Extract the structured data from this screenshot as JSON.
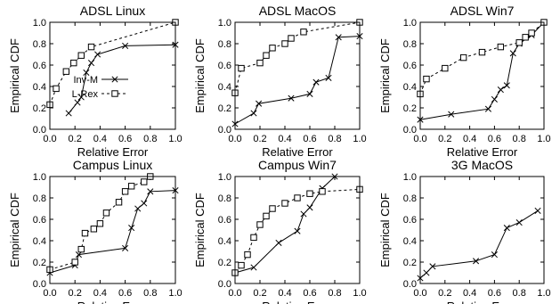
{
  "chart_data": [
    {
      "type": "line",
      "title": "ADSL Linux",
      "xlabel": "Relative Error",
      "ylabel": "Empirical CDF",
      "xlim": [
        0,
        1
      ],
      "ylim": [
        0,
        1
      ],
      "xticks": [
        "0.0",
        "0.2",
        "0.4",
        "0.6",
        "0.8",
        "1.0"
      ],
      "yticks": [
        "0.0",
        "0.2",
        "0.4",
        "0.6",
        "0.8",
        "1.0"
      ],
      "legend": "center-left",
      "series": [
        {
          "name": "Inv-M",
          "marker": "x",
          "dash": "solid",
          "x": [
            0.15,
            0.22,
            0.25,
            0.29,
            0.33,
            0.38,
            0.6,
            1.0
          ],
          "y": [
            0.15,
            0.25,
            0.3,
            0.53,
            0.62,
            0.7,
            0.78,
            0.79
          ]
        },
        {
          "name": "L-Rex",
          "marker": "square",
          "dash": "dashed",
          "x": [
            0.0,
            0.05,
            0.13,
            0.19,
            0.25,
            0.33,
            1.0
          ],
          "y": [
            0.23,
            0.38,
            0.54,
            0.62,
            0.69,
            0.77,
            1.0
          ]
        }
      ]
    },
    {
      "type": "line",
      "title": "ADSL MacOS",
      "xlabel": "Relative Error",
      "ylabel": "Empirical CDF",
      "xlim": [
        0,
        1
      ],
      "ylim": [
        0,
        1
      ],
      "xticks": [
        "0.0",
        "0.2",
        "0.4",
        "0.6",
        "0.8",
        "1.0"
      ],
      "yticks": [
        "0.0",
        "0.2",
        "0.4",
        "0.6",
        "0.8",
        "1.0"
      ],
      "series": [
        {
          "name": "Inv-M",
          "marker": "x",
          "dash": "solid",
          "x": [
            0.0,
            0.15,
            0.19,
            0.45,
            0.6,
            0.65,
            0.75,
            0.83,
            1.0
          ],
          "y": [
            0.05,
            0.15,
            0.24,
            0.29,
            0.33,
            0.44,
            0.48,
            0.86,
            0.87
          ]
        },
        {
          "name": "L-Rex",
          "marker": "square",
          "dash": "dashed",
          "x": [
            0.0,
            0.05,
            0.2,
            0.25,
            0.3,
            0.4,
            0.45,
            0.55,
            1.0
          ],
          "y": [
            0.34,
            0.57,
            0.62,
            0.69,
            0.76,
            0.8,
            0.85,
            0.91,
            1.0
          ]
        }
      ]
    },
    {
      "type": "line",
      "title": "ADSL Win7",
      "xlabel": "Relative Error",
      "ylabel": "Empirical CDF",
      "xlim": [
        0,
        1
      ],
      "ylim": [
        0,
        1
      ],
      "xticks": [
        "0.0",
        "0.2",
        "0.4",
        "0.6",
        "0.8",
        "1.0"
      ],
      "yticks": [
        "0.0",
        "0.2",
        "0.4",
        "0.6",
        "0.8",
        "1.0"
      ],
      "series": [
        {
          "name": "Inv-M",
          "marker": "x",
          "dash": "solid",
          "x": [
            0.0,
            0.25,
            0.55,
            0.6,
            0.65,
            0.7,
            0.75,
            0.8,
            0.9,
            1.0
          ],
          "y": [
            0.09,
            0.14,
            0.19,
            0.28,
            0.37,
            0.41,
            0.71,
            0.8,
            0.88,
            1.0
          ]
        },
        {
          "name": "L-Rex",
          "marker": "square",
          "dash": "dashed",
          "x": [
            0.0,
            0.05,
            0.2,
            0.35,
            0.5,
            0.65,
            0.8,
            0.85,
            0.9,
            1.0
          ],
          "y": [
            0.33,
            0.47,
            0.57,
            0.67,
            0.72,
            0.77,
            0.81,
            0.86,
            0.9,
            1.0
          ]
        }
      ]
    },
    {
      "type": "line",
      "title": "Campus Linux",
      "xlabel": "Relative Error",
      "ylabel": "Empirical CDF",
      "xlim": [
        0,
        1
      ],
      "ylim": [
        0,
        1
      ],
      "xticks": [
        "0.0",
        "0.2",
        "0.4",
        "0.6",
        "0.8",
        "1.0"
      ],
      "yticks": [
        "0.0",
        "0.2",
        "0.4",
        "0.6",
        "0.8",
        "1.0"
      ],
      "series": [
        {
          "name": "Inv-M",
          "marker": "x",
          "dash": "solid",
          "x": [
            0.0,
            0.2,
            0.23,
            0.6,
            0.65,
            0.7,
            0.75,
            0.8,
            1.0
          ],
          "y": [
            0.1,
            0.17,
            0.27,
            0.33,
            0.52,
            0.7,
            0.75,
            0.86,
            0.87
          ]
        },
        {
          "name": "L-Rex",
          "marker": "square",
          "dash": "dashed",
          "x": [
            0.0,
            0.2,
            0.25,
            0.28,
            0.35,
            0.4,
            0.45,
            0.55,
            0.6,
            0.65,
            0.75,
            0.8
          ],
          "y": [
            0.13,
            0.2,
            0.32,
            0.47,
            0.51,
            0.56,
            0.66,
            0.76,
            0.86,
            0.91,
            0.95,
            1.0
          ]
        }
      ]
    },
    {
      "type": "line",
      "title": "Campus Win7",
      "xlabel": "Relative Error",
      "ylabel": "Empirical CDF",
      "xlim": [
        0,
        1
      ],
      "ylim": [
        0,
        1
      ],
      "xticks": [
        "0.0",
        "0.2",
        "0.4",
        "0.6",
        "0.8",
        "1.0"
      ],
      "yticks": [
        "0.0",
        "0.2",
        "0.4",
        "0.6",
        "0.8",
        "1.0"
      ],
      "series": [
        {
          "name": "Inv-M",
          "marker": "x",
          "dash": "solid",
          "x": [
            0.0,
            0.15,
            0.35,
            0.5,
            0.55,
            0.6,
            0.7,
            0.8
          ],
          "y": [
            0.1,
            0.15,
            0.38,
            0.49,
            0.65,
            0.71,
            0.89,
            1.0
          ]
        },
        {
          "name": "L-Rex",
          "marker": "square",
          "dash": "dashed",
          "x": [
            0.0,
            0.05,
            0.1,
            0.15,
            0.2,
            0.25,
            0.3,
            0.4,
            0.5,
            0.6,
            0.7,
            1.0
          ],
          "y": [
            0.1,
            0.17,
            0.27,
            0.43,
            0.55,
            0.63,
            0.7,
            0.75,
            0.8,
            0.84,
            0.86,
            0.88
          ]
        }
      ]
    },
    {
      "type": "line",
      "title": "3G MacOS",
      "xlabel": "Relative Error",
      "ylabel": "Empirical CDF",
      "xlim": [
        0,
        1
      ],
      "ylim": [
        0,
        1
      ],
      "xticks": [
        "0.0",
        "0.2",
        "0.4",
        "0.6",
        "0.8",
        "1.0"
      ],
      "yticks": [
        "0.0",
        "0.2",
        "0.4",
        "0.6",
        "0.8",
        "1.0"
      ],
      "series": [
        {
          "name": "Inv-M",
          "marker": "x",
          "dash": "solid",
          "x": [
            0.0,
            0.05,
            0.1,
            0.45,
            0.6,
            0.7,
            0.8,
            0.95
          ],
          "y": [
            0.05,
            0.1,
            0.16,
            0.21,
            0.27,
            0.52,
            0.57,
            0.68
          ]
        }
      ]
    }
  ]
}
